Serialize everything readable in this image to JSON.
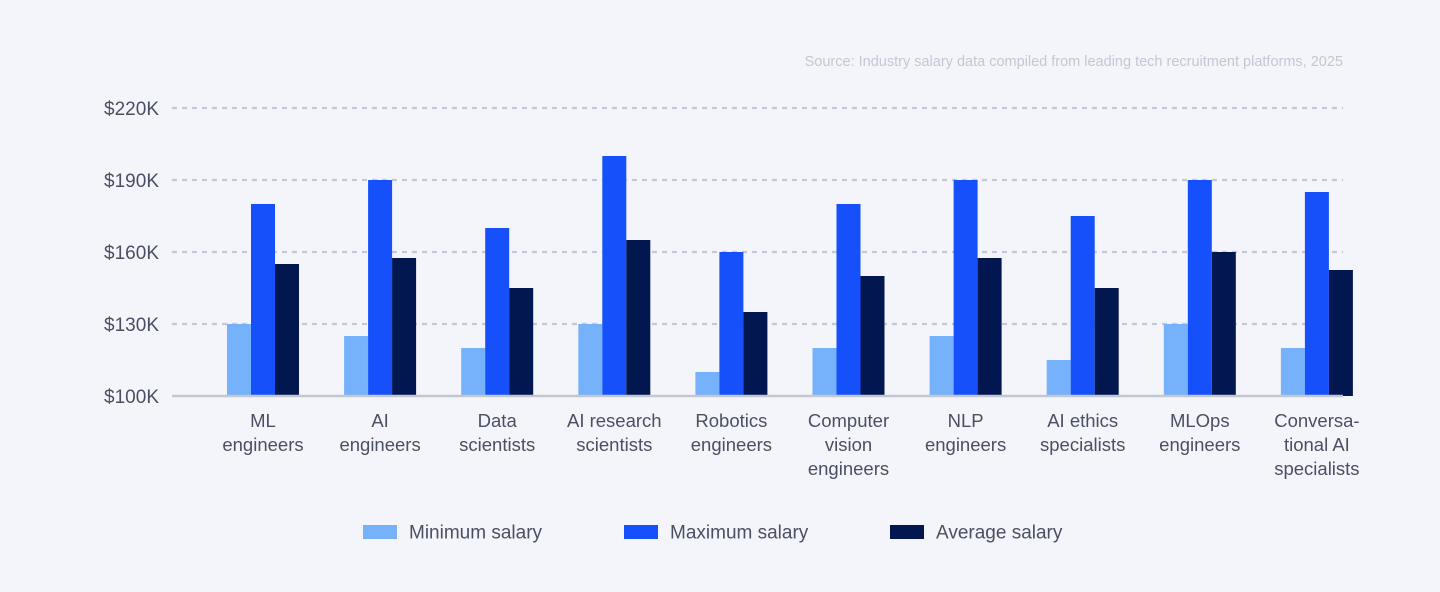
{
  "source": "Source: Industry salary data compiled from leading tech recruitment platforms, 2025",
  "colors": {
    "background": "#f4f5fa",
    "grid": "#c5c8d6",
    "axis": "#c2c7d2",
    "text": "#4b4f63",
    "source_text": "#c3c7d4"
  },
  "chart_data": {
    "type": "bar",
    "title": "",
    "xlabel": "",
    "ylabel": "",
    "ylim": [
      100000,
      220000
    ],
    "yticks": [
      100000,
      130000,
      160000,
      190000,
      220000
    ],
    "ytick_labels": [
      "$100K",
      "$130K",
      "$160K",
      "$190K",
      "$220K"
    ],
    "grid": "horizontal dashed",
    "legend_position": "bottom-center",
    "categories": [
      [
        "ML",
        "engineers"
      ],
      [
        "AI",
        "engineers"
      ],
      [
        "Data",
        "scientists"
      ],
      [
        "AI research",
        "scientists"
      ],
      [
        "Robotics",
        "engineers"
      ],
      [
        "Computer",
        "vision",
        "engineers"
      ],
      [
        "NLP",
        "engineers"
      ],
      [
        "AI ethics",
        "specialists"
      ],
      [
        "MLOps",
        "engineers"
      ],
      [
        "Conversa-",
        "tional AI",
        "specialists"
      ]
    ],
    "series": [
      {
        "name": "Minimum salary",
        "color": "#76b1fb",
        "values": [
          130000,
          125000,
          120000,
          130000,
          110000,
          120000,
          125000,
          115000,
          130000,
          120000
        ]
      },
      {
        "name": "Maximum salary",
        "color": "#1550fb",
        "values": [
          180000,
          190000,
          170000,
          200000,
          160000,
          180000,
          190000,
          175000,
          190000,
          185000
        ]
      },
      {
        "name": "Average salary",
        "color": "#02164f",
        "values": [
          155000,
          157500,
          145000,
          165000,
          135000,
          150000,
          157500,
          145000,
          160000,
          152500
        ]
      }
    ]
  }
}
